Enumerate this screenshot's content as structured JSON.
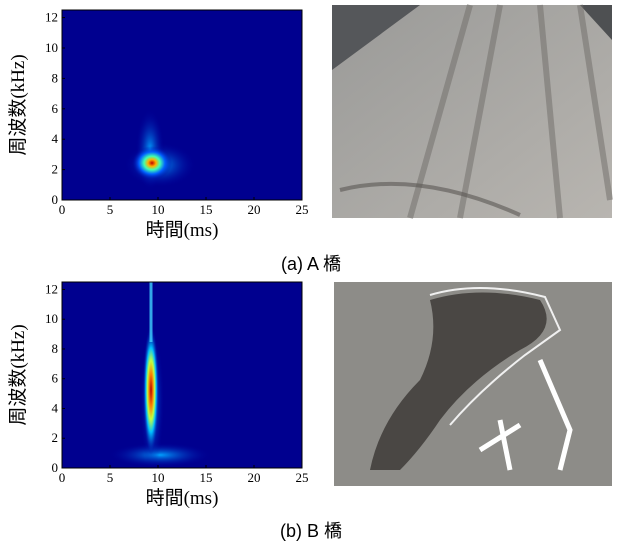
{
  "figures": [
    {
      "xlabel": "時間(ms)",
      "ylabel": "周波数(kHz)",
      "xlim": [
        0,
        25
      ],
      "ylim": [
        0,
        12.5
      ],
      "xticks": [
        0,
        5,
        10,
        15,
        20,
        25
      ],
      "yticks": [
        0,
        2,
        4,
        6,
        8,
        10,
        12
      ],
      "caption": "(a) A 橋"
    },
    {
      "xlabel": "時間(ms)",
      "ylabel": "周波数(kHz)",
      "xlim": [
        0,
        25
      ],
      "ylim": [
        0,
        12.5
      ],
      "xticks": [
        0,
        5,
        10,
        15,
        20,
        25
      ],
      "yticks": [
        0,
        2,
        4,
        6,
        8,
        10,
        12
      ],
      "caption": "(b) B 橋"
    }
  ]
}
